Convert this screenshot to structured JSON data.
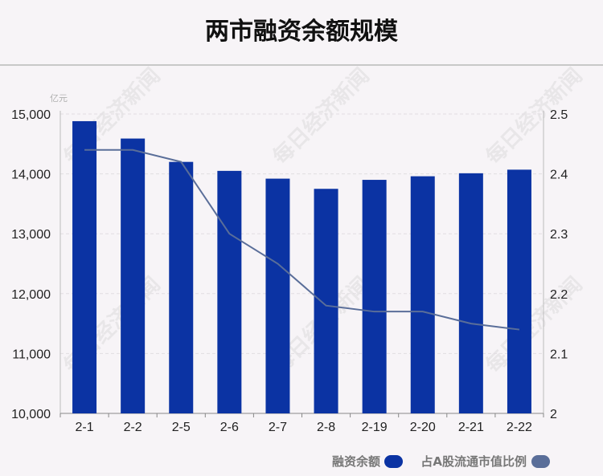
{
  "title": "两市融资余额规模",
  "watermark": "每日经济新闻",
  "chart_data": {
    "type": "bar",
    "categories": [
      "2-1",
      "2-2",
      "2-5",
      "2-6",
      "2-7",
      "2-8",
      "2-19",
      "2-20",
      "2-21",
      "2-22"
    ],
    "series": [
      {
        "name": "融资余额",
        "type": "bar",
        "axis": "left",
        "color": "#0b33a3",
        "values": [
          14880,
          14590,
          14200,
          14050,
          13920,
          13750,
          13900,
          13960,
          14010,
          14070
        ]
      },
      {
        "name": "占A股流通市值比例",
        "type": "line",
        "axis": "right",
        "color": "#5a6e99",
        "values": [
          2.44,
          2.44,
          2.42,
          2.3,
          2.25,
          2.18,
          2.17,
          2.17,
          2.15,
          2.14
        ]
      }
    ],
    "y_left": {
      "unit": "亿元",
      "ylim": [
        10000,
        15000
      ],
      "ticks": [
        "10,000",
        "11,000",
        "12,000",
        "13,000",
        "14,000",
        "15,000"
      ]
    },
    "y_right": {
      "ylim": [
        2.0,
        2.5
      ],
      "ticks": [
        "2",
        "2.1",
        "2.2",
        "2.3",
        "2.4",
        "2.5"
      ]
    },
    "grid": true,
    "legend_position": "bottom-right"
  }
}
